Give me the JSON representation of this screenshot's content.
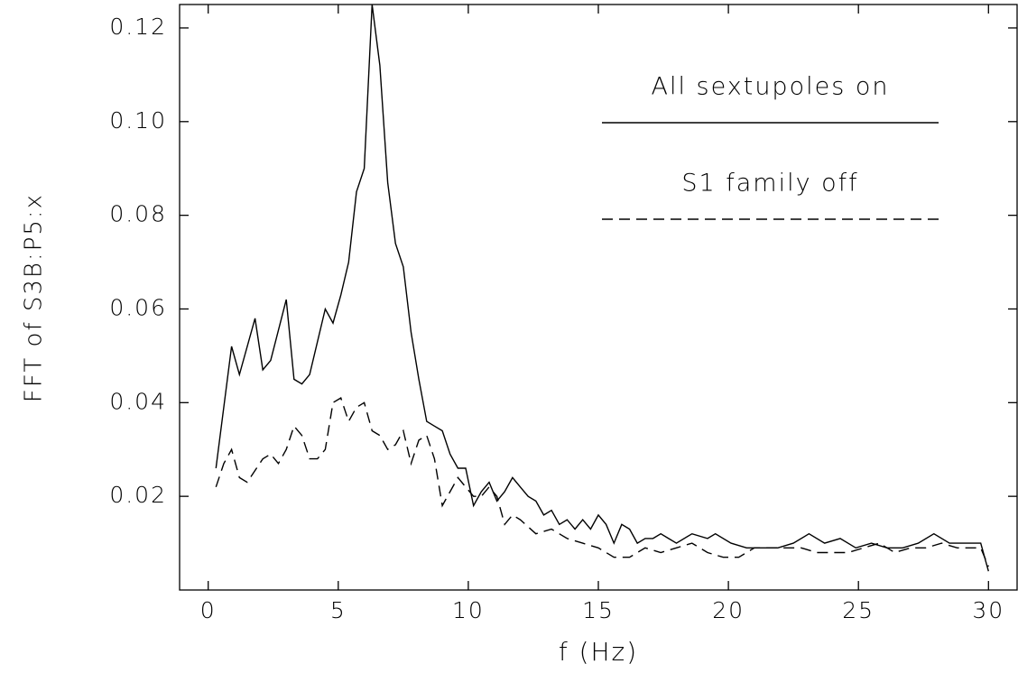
{
  "chart_data": {
    "type": "line",
    "xlabel": "f (Hz)",
    "ylabel": "FFT of S3B:P5:x",
    "xlim": [
      -1.1,
      31.1
    ],
    "ylim": [
      0,
      0.125
    ],
    "xticks": [
      0,
      5,
      10,
      15,
      20,
      25,
      30
    ],
    "yticks": [
      0.12,
      {
        "value": 0.1,
        "label": "0.10"
      },
      0.08,
      0.06,
      0.04,
      0.02
    ],
    "legend": "upper right",
    "series": [
      {
        "name": "All sextupoles on",
        "color": "#000000",
        "style": "solid",
        "x": [
          0.3,
          0.9,
          1.2,
          1.8,
          2.1,
          2.4,
          3.0,
          3.3,
          3.6,
          3.9,
          4.5,
          4.8,
          5.1,
          5.4,
          5.7,
          6.0,
          6.3,
          6.6,
          6.9,
          7.2,
          7.5,
          7.8,
          8.1,
          8.4,
          8.7,
          9.0,
          9.3,
          9.6,
          9.9,
          10.2,
          10.5,
          10.8,
          11.1,
          11.4,
          11.7,
          12.0,
          12.3,
          12.6,
          12.9,
          13.2,
          13.5,
          13.8,
          14.1,
          14.4,
          14.7,
          15.0,
          15.3,
          15.6,
          15.9,
          16.2,
          16.5,
          16.8,
          17.1,
          17.4,
          17.7,
          18.0,
          18.6,
          19.2,
          19.5,
          20.1,
          20.7,
          21.3,
          21.9,
          22.5,
          23.1,
          23.7,
          24.3,
          24.9,
          25.5,
          26.1,
          26.7,
          27.3,
          27.9,
          28.5,
          29.1,
          29.7,
          30.0
        ],
        "values": [
          0.026,
          0.052,
          0.046,
          0.058,
          0.047,
          0.049,
          0.062,
          0.045,
          0.044,
          0.046,
          0.06,
          0.057,
          0.063,
          0.07,
          0.085,
          0.09,
          0.125,
          0.112,
          0.087,
          0.074,
          0.069,
          0.055,
          0.045,
          0.036,
          0.035,
          0.034,
          0.029,
          0.026,
          0.026,
          0.018,
          0.021,
          0.023,
          0.019,
          0.021,
          0.024,
          0.022,
          0.02,
          0.019,
          0.016,
          0.017,
          0.014,
          0.015,
          0.013,
          0.015,
          0.013,
          0.016,
          0.014,
          0.01,
          0.014,
          0.013,
          0.01,
          0.011,
          0.011,
          0.012,
          0.011,
          0.01,
          0.012,
          0.011,
          0.012,
          0.01,
          0.009,
          0.009,
          0.009,
          0.01,
          0.012,
          0.01,
          0.011,
          0.009,
          0.01,
          0.009,
          0.009,
          0.01,
          0.012,
          0.01,
          0.01,
          0.01,
          0.004
        ]
      },
      {
        "name": "S1 family off",
        "color": "#000000",
        "style": "dashed",
        "x": [
          0.3,
          0.6,
          0.9,
          1.2,
          1.5,
          2.1,
          2.4,
          2.7,
          3.0,
          3.3,
          3.6,
          3.9,
          4.2,
          4.5,
          4.8,
          5.1,
          5.4,
          5.7,
          6.0,
          6.3,
          6.6,
          6.9,
          7.2,
          7.5,
          7.8,
          8.1,
          8.4,
          8.7,
          9.0,
          9.3,
          9.6,
          9.9,
          10.2,
          10.5,
          10.8,
          11.1,
          11.4,
          11.7,
          12.0,
          12.6,
          13.2,
          13.8,
          14.4,
          15.0,
          15.6,
          16.2,
          16.8,
          17.4,
          18.0,
          18.6,
          19.2,
          19.8,
          20.4,
          21.0,
          21.6,
          22.2,
          22.8,
          23.4,
          24.0,
          24.6,
          25.2,
          25.8,
          26.4,
          27.0,
          27.6,
          28.2,
          28.8,
          29.4,
          29.7,
          30.0
        ],
        "values": [
          0.022,
          0.027,
          0.03,
          0.024,
          0.023,
          0.028,
          0.029,
          0.027,
          0.03,
          0.035,
          0.033,
          0.028,
          0.028,
          0.03,
          0.04,
          0.041,
          0.036,
          0.039,
          0.04,
          0.034,
          0.033,
          0.03,
          0.031,
          0.034,
          0.027,
          0.032,
          0.033,
          0.028,
          0.018,
          0.021,
          0.024,
          0.022,
          0.02,
          0.02,
          0.022,
          0.02,
          0.014,
          0.016,
          0.015,
          0.012,
          0.013,
          0.011,
          0.01,
          0.009,
          0.007,
          0.007,
          0.009,
          0.008,
          0.009,
          0.01,
          0.008,
          0.007,
          0.007,
          0.009,
          0.009,
          0.009,
          0.009,
          0.008,
          0.008,
          0.008,
          0.009,
          0.01,
          0.008,
          0.009,
          0.009,
          0.01,
          0.009,
          0.009,
          0.009,
          0.005
        ]
      }
    ]
  }
}
